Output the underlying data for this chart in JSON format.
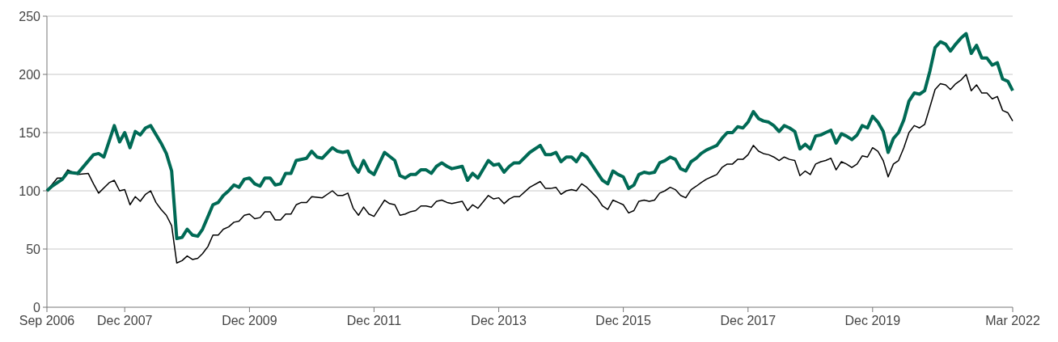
{
  "chart_data": {
    "type": "line",
    "grid": "y",
    "ylim": [
      0,
      250
    ],
    "yticks": [
      0,
      50,
      100,
      150,
      200,
      250
    ],
    "xlim": [
      "2006-09",
      "2022-03"
    ],
    "xticks": [
      {
        "value": "2006-09",
        "label": "Sep 2006"
      },
      {
        "value": "2007-12",
        "label": "Dec 2007"
      },
      {
        "value": "2009-12",
        "label": "Dec 2009"
      },
      {
        "value": "2011-12",
        "label": "Dec 2011"
      },
      {
        "value": "2013-12",
        "label": "Dec 2013"
      },
      {
        "value": "2015-12",
        "label": "Dec 2015"
      },
      {
        "value": "2017-12",
        "label": "Dec 2017"
      },
      {
        "value": "2019-12",
        "label": "Dec 2019"
      },
      {
        "value": "2022-03",
        "label": "Mar 2022"
      }
    ],
    "series": [
      {
        "color": "#000000",
        "x": [
          "2006-09",
          "2006-11",
          "2006-12",
          "2007-01",
          "2007-03",
          "2007-05",
          "2007-06",
          "2007-07",
          "2007-09",
          "2007-10",
          "2007-11",
          "2007-12",
          "2008-01",
          "2008-02",
          "2008-03",
          "2008-04",
          "2008-05",
          "2008-06",
          "2008-07",
          "2008-08",
          "2008-09",
          "2008-10",
          "2008-11",
          "2008-12",
          "2009-01",
          "2009-02",
          "2009-03",
          "2009-04",
          "2009-05",
          "2009-06",
          "2009-07",
          "2009-08",
          "2009-09",
          "2009-10",
          "2009-11",
          "2009-12",
          "2010-01",
          "2010-02",
          "2010-03",
          "2010-04",
          "2010-05",
          "2010-06",
          "2010-07",
          "2010-08",
          "2010-09",
          "2010-10",
          "2010-11",
          "2010-12",
          "2011-02",
          "2011-04",
          "2011-05",
          "2011-06",
          "2011-07",
          "2011-08",
          "2011-09",
          "2011-10",
          "2011-11",
          "2011-12",
          "2012-02",
          "2012-03",
          "2012-04",
          "2012-05",
          "2012-06",
          "2012-07",
          "2012-08",
          "2012-09",
          "2012-10",
          "2012-11",
          "2012-12",
          "2013-01",
          "2013-02",
          "2013-03",
          "2013-05",
          "2013-06",
          "2013-07",
          "2013-08",
          "2013-10",
          "2013-11",
          "2013-12",
          "2014-01",
          "2014-02",
          "2014-03",
          "2014-04",
          "2014-06",
          "2014-08",
          "2014-09",
          "2014-10",
          "2014-11",
          "2014-12",
          "2015-01",
          "2015-02",
          "2015-03",
          "2015-04",
          "2015-05",
          "2015-07",
          "2015-08",
          "2015-09",
          "2015-10",
          "2015-11",
          "2015-12",
          "2016-01",
          "2016-02",
          "2016-03",
          "2016-04",
          "2016-05",
          "2016-06",
          "2016-07",
          "2016-08",
          "2016-09",
          "2016-10",
          "2016-11",
          "2016-12",
          "2017-01",
          "2017-02",
          "2017-03",
          "2017-04",
          "2017-05",
          "2017-06",
          "2017-07",
          "2017-08",
          "2017-09",
          "2017-10",
          "2017-11",
          "2017-12",
          "2018-01",
          "2018-02",
          "2018-03",
          "2018-04",
          "2018-05",
          "2018-06",
          "2018-07",
          "2018-08",
          "2018-09",
          "2018-10",
          "2018-11",
          "2018-12",
          "2019-01",
          "2019-02",
          "2019-03",
          "2019-04",
          "2019-05",
          "2019-06",
          "2019-07",
          "2019-08",
          "2019-09",
          "2019-10",
          "2019-11",
          "2019-12",
          "2020-01",
          "2020-02",
          "2020-03",
          "2020-04",
          "2020-05",
          "2020-06",
          "2020-07",
          "2020-08",
          "2020-09",
          "2020-10",
          "2020-11",
          "2020-12",
          "2021-01",
          "2021-02",
          "2021-03",
          "2021-04",
          "2021-05",
          "2021-06",
          "2021-07",
          "2021-08",
          "2021-09",
          "2021-10",
          "2021-11",
          "2021-12",
          "2022-01",
          "2022-02",
          "2022-03"
        ],
        "values": [
          100,
          111,
          111,
          118,
          114,
          115,
          106,
          98,
          107,
          109,
          100,
          101,
          88,
          95,
          91,
          97,
          100,
          90,
          84,
          79,
          70,
          38,
          40,
          44,
          41,
          42,
          46,
          52,
          62,
          62,
          67,
          69,
          73,
          74,
          79,
          80,
          76,
          77,
          82,
          82,
          75,
          75,
          80,
          80,
          88,
          90,
          90,
          95,
          94,
          100,
          96,
          96,
          98,
          85,
          79,
          86,
          80,
          78,
          92,
          89,
          88,
          79,
          80,
          82,
          83,
          87,
          87,
          86,
          91,
          92,
          90,
          89,
          91,
          83,
          88,
          85,
          96,
          93,
          94,
          89,
          93,
          95,
          95,
          103,
          108,
          102,
          102,
          103,
          97,
          100,
          101,
          100,
          106,
          103,
          94,
          87,
          84,
          92,
          90,
          88,
          81,
          83,
          91,
          92,
          91,
          92,
          98,
          100,
          103,
          101,
          96,
          94,
          101,
          104,
          107,
          110,
          112,
          114,
          120,
          123,
          123,
          127,
          127,
          131,
          139,
          134,
          132,
          131,
          129,
          126,
          129,
          127,
          126,
          113,
          117,
          114,
          123,
          125,
          126,
          128,
          118,
          125,
          123,
          120,
          123,
          130,
          129,
          137,
          134,
          126,
          112,
          123,
          126,
          137,
          150,
          156,
          154,
          157,
          172,
          187,
          192,
          191,
          187,
          192,
          195,
          200,
          186,
          191,
          184,
          184,
          179,
          181,
          169,
          167,
          160
        ]
      },
      {
        "color": "#006a55",
        "x": [
          "2006-09",
          "2006-10",
          "2006-12",
          "2007-01",
          "2007-03",
          "2007-06",
          "2007-07",
          "2007-08",
          "2007-10",
          "2007-11",
          "2007-12",
          "2008-01",
          "2008-02",
          "2008-03",
          "2008-04",
          "2008-05",
          "2008-07",
          "2008-08",
          "2008-09",
          "2008-10",
          "2008-11",
          "2008-12",
          "2009-01",
          "2009-02",
          "2009-03",
          "2009-05",
          "2009-06",
          "2009-07",
          "2009-08",
          "2009-09",
          "2009-10",
          "2009-11",
          "2009-12",
          "2010-01",
          "2010-02",
          "2010-03",
          "2010-04",
          "2010-05",
          "2010-06",
          "2010-07",
          "2010-08",
          "2010-09",
          "2010-11",
          "2010-12",
          "2011-01",
          "2011-02",
          "2011-04",
          "2011-05",
          "2011-06",
          "2011-07",
          "2011-08",
          "2011-09",
          "2011-10",
          "2011-11",
          "2011-12",
          "2012-02",
          "2012-04",
          "2012-05",
          "2012-06",
          "2012-07",
          "2012-08",
          "2012-09",
          "2012-10",
          "2012-11",
          "2012-12",
          "2013-01",
          "2013-02",
          "2013-03",
          "2013-05",
          "2013-06",
          "2013-07",
          "2013-08",
          "2013-10",
          "2013-11",
          "2013-12",
          "2014-01",
          "2014-02",
          "2014-03",
          "2014-04",
          "2014-06",
          "2014-08",
          "2014-09",
          "2014-10",
          "2014-11",
          "2014-12",
          "2015-01",
          "2015-02",
          "2015-03",
          "2015-04",
          "2015-05",
          "2015-08",
          "2015-09",
          "2015-10",
          "2015-11",
          "2015-12",
          "2016-01",
          "2016-02",
          "2016-03",
          "2016-04",
          "2016-05",
          "2016-06",
          "2016-07",
          "2016-08",
          "2016-09",
          "2016-10",
          "2016-11",
          "2016-12",
          "2017-01",
          "2017-02",
          "2017-03",
          "2017-04",
          "2017-05",
          "2017-06",
          "2017-07",
          "2017-08",
          "2017-09",
          "2017-10",
          "2017-11",
          "2017-12",
          "2018-01",
          "2018-02",
          "2018-03",
          "2018-04",
          "2018-05",
          "2018-06",
          "2018-07",
          "2018-08",
          "2018-09",
          "2018-10",
          "2018-11",
          "2018-12",
          "2019-01",
          "2019-02",
          "2019-03",
          "2019-04",
          "2019-05",
          "2019-06",
          "2019-07",
          "2019-08",
          "2019-09",
          "2019-10",
          "2019-11",
          "2019-12",
          "2020-01",
          "2020-02",
          "2020-03",
          "2020-04",
          "2020-05",
          "2020-06",
          "2020-07",
          "2020-08",
          "2020-09",
          "2020-10",
          "2020-11",
          "2020-12",
          "2021-01",
          "2021-02",
          "2021-03",
          "2021-04",
          "2021-05",
          "2021-06",
          "2021-07",
          "2021-08",
          "2021-09",
          "2021-10",
          "2021-11",
          "2021-12",
          "2022-01",
          "2022-02",
          "2022-03"
        ],
        "values": [
          100,
          104,
          110,
          116,
          115,
          131,
          132,
          129,
          156,
          142,
          150,
          137,
          151,
          148,
          154,
          156,
          141,
          132,
          117,
          59,
          60,
          67,
          62,
          61,
          67,
          88,
          90,
          96,
          100,
          105,
          103,
          110,
          111,
          106,
          104,
          111,
          111,
          105,
          106,
          115,
          115,
          126,
          128,
          134,
          129,
          128,
          137,
          134,
          133,
          134,
          122,
          116,
          126,
          117,
          114,
          133,
          126,
          113,
          111,
          114,
          114,
          118,
          118,
          115,
          121,
          124,
          121,
          119,
          121,
          109,
          115,
          111,
          126,
          122,
          123,
          116,
          121,
          124,
          124,
          133,
          139,
          131,
          131,
          133,
          125,
          129,
          129,
          125,
          132,
          129,
          109,
          106,
          117,
          114,
          112,
          102,
          105,
          114,
          116,
          115,
          116,
          124,
          126,
          129,
          127,
          119,
          117,
          125,
          128,
          132,
          135,
          137,
          139,
          145,
          150,
          150,
          155,
          154,
          159,
          168,
          162,
          160,
          159,
          156,
          151,
          156,
          154,
          151,
          136,
          140,
          136,
          147,
          148,
          150,
          152,
          141,
          149,
          147,
          144,
          148,
          156,
          154,
          164,
          159,
          151,
          133,
          145,
          150,
          161,
          177,
          184,
          183,
          186,
          203,
          223,
          228,
          226,
          220,
          226,
          231,
          235,
          218,
          225,
          214,
          214,
          208,
          210,
          196,
          194,
          186
        ]
      }
    ]
  }
}
